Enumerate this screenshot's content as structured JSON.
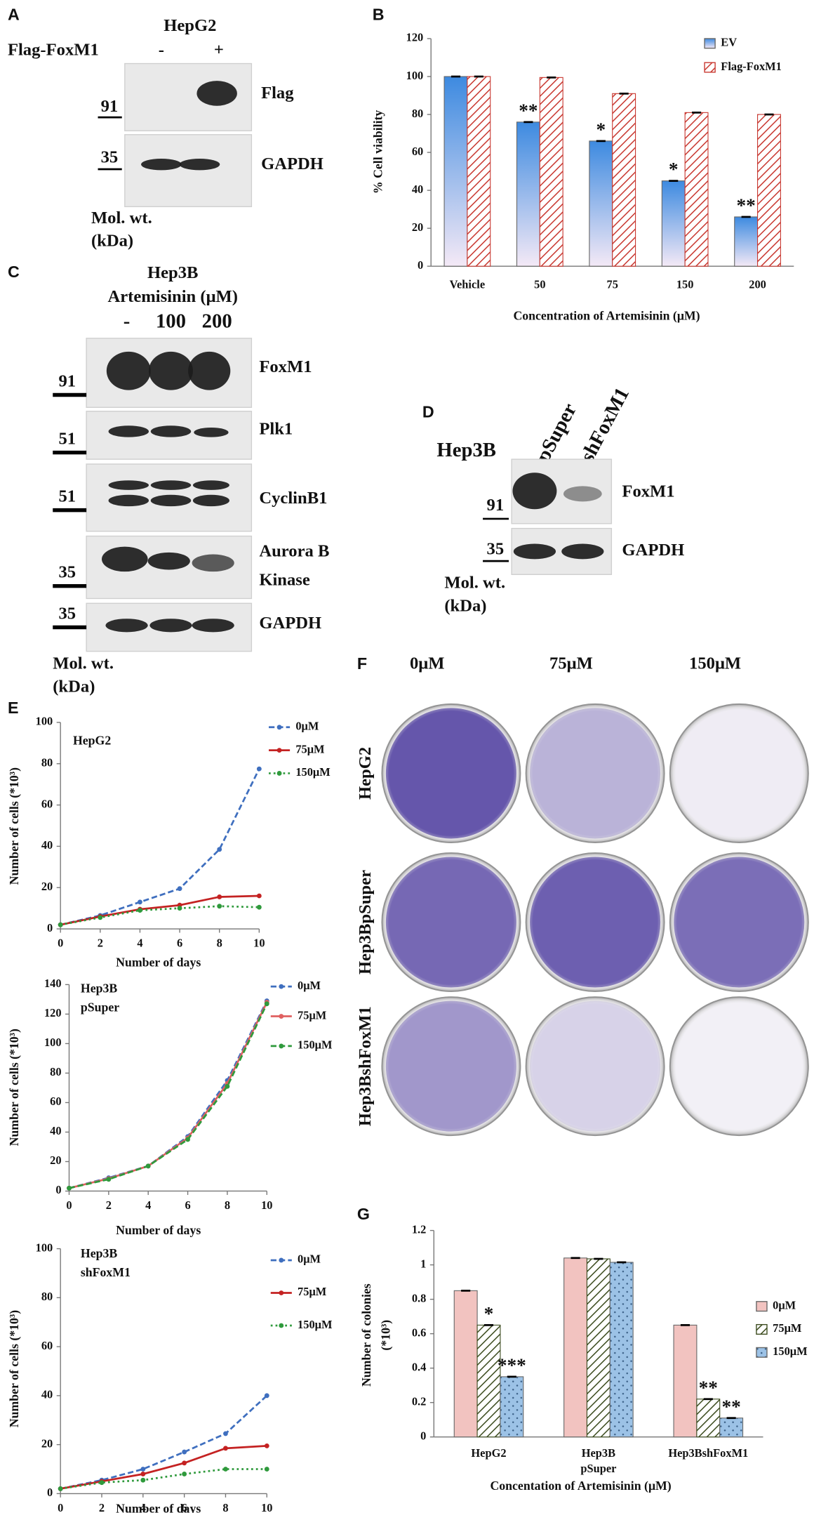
{
  "figure_panels": {
    "A": {
      "panel": "A",
      "cell_line": "HepG2",
      "row_label": "Flag-FoxM1",
      "lanes": [
        "-",
        "+"
      ],
      "blots": [
        "Flag",
        "GAPDH"
      ],
      "markers": [
        91,
        35
      ],
      "mw_label": [
        "Mol. wt.",
        "(kDa)"
      ]
    },
    "C": {
      "panel": "C",
      "cell_line": "Hep3B",
      "row_label": "Artemisinin (μM)",
      "lanes": [
        "-",
        "100",
        "200"
      ],
      "blots": [
        "FoxM1",
        "Plk1",
        "CyclinB1",
        [
          "Aurora B",
          "Kinase"
        ],
        "GAPDH"
      ],
      "markers": [
        91,
        51,
        51,
        35,
        35
      ],
      "mw_label": [
        "Mol. wt.",
        "(kDa)"
      ]
    },
    "D": {
      "panel": "D",
      "cell_line": "Hep3B",
      "lanes": [
        "pSuper",
        "shFoxM1"
      ],
      "blots": [
        "FoxM1",
        "GAPDH"
      ],
      "markers": [
        91,
        35
      ],
      "mw_label": [
        "Mol. wt.",
        "(kDa)"
      ]
    },
    "F": {
      "panel": "F",
      "columns": [
        "0μM",
        "75μM",
        "150μM"
      ],
      "rows": [
        "HepG2",
        "Hep3BpSuper",
        "Hep3BshFoxM1"
      ]
    }
  },
  "chart_data": [
    {
      "type": "bar",
      "panel": "B",
      "categories": [
        "Vehicle",
        "50",
        "75",
        "150",
        "200"
      ],
      "series": [
        {
          "name": "EV",
          "color": "#3d8ae0",
          "pattern": "gradient",
          "values": [
            100,
            76,
            66,
            45,
            26
          ],
          "annotations": [
            null,
            "**",
            "*",
            "*",
            "**"
          ]
        },
        {
          "name": "Flag-FoxM1",
          "color": "#c8362e",
          "pattern": "hatch",
          "values": [
            100,
            99.5,
            91,
            81,
            80
          ]
        }
      ],
      "ylim": [
        0,
        120
      ],
      "yticks": [
        0,
        20,
        40,
        60,
        80,
        100,
        120
      ],
      "ylabel": "% Cell viability",
      "xlabel": "Concentration of Artemisinin (μM)",
      "legend": "upper right"
    },
    {
      "type": "line",
      "panel": "E",
      "title": [
        "HepG2"
      ],
      "x": [
        0,
        2,
        4,
        6,
        8,
        10
      ],
      "series": [
        {
          "name": "0μM",
          "color": "#3f6fbf",
          "dash": "dashed",
          "values": [
            2,
            6.5,
            13,
            19.5,
            38.5,
            77.5
          ]
        },
        {
          "name": "75μM",
          "color": "#c42222",
          "dash": "solid",
          "values": [
            2,
            6,
            9.5,
            11.5,
            15.5,
            16
          ]
        },
        {
          "name": "150μM",
          "color": "#2f9a3c",
          "dash": "dotted",
          "values": [
            2,
            5.5,
            9,
            10,
            11,
            10.5
          ]
        }
      ],
      "xlim": [
        0,
        10
      ],
      "xticks": [
        0,
        2,
        4,
        6,
        8,
        10
      ],
      "ylim": [
        0,
        100
      ],
      "yticks": [
        0,
        20,
        40,
        60,
        80,
        100
      ],
      "ylabel": "Number of cells (*10³)",
      "xlabel": "Number of days",
      "legend": "upper right"
    },
    {
      "type": "line",
      "title": [
        "Hep3B",
        "pSuper"
      ],
      "x": [
        0,
        2,
        4,
        6,
        8,
        10
      ],
      "series": [
        {
          "name": "0μM",
          "color": "#3f6fbf",
          "dash": "dashed",
          "values": [
            2,
            9,
            17,
            37,
            75,
            129
          ]
        },
        {
          "name": "75μM",
          "color": "#e06060",
          "dash": "solid",
          "values": [
            2,
            8.5,
            17,
            36,
            73,
            128
          ]
        },
        {
          "name": "150μM",
          "color": "#2f9a3c",
          "dash": "dashed",
          "values": [
            2,
            8,
            17,
            35,
            71,
            127
          ]
        }
      ],
      "xlim": [
        0,
        10
      ],
      "xticks": [
        0,
        2,
        4,
        6,
        8,
        10
      ],
      "ylim": [
        0,
        140
      ],
      "yticks": [
        0,
        20,
        40,
        60,
        80,
        100,
        120,
        140
      ],
      "ylabel": "Number of cells (*10³)",
      "xlabel": "Number of days",
      "legend": "upper right"
    },
    {
      "type": "line",
      "title": [
        "Hep3B",
        "shFoxM1"
      ],
      "x": [
        0,
        2,
        4,
        6,
        8,
        10
      ],
      "series": [
        {
          "name": "0μM",
          "color": "#3f6fbf",
          "dash": "dashed",
          "values": [
            2,
            5.5,
            10,
            17,
            24.5,
            40
          ]
        },
        {
          "name": "75μM",
          "color": "#c42222",
          "dash": "solid",
          "values": [
            2,
            5,
            8,
            12.5,
            18.5,
            19.5
          ]
        },
        {
          "name": "150μM",
          "color": "#2f9a3c",
          "dash": "dotted",
          "values": [
            2,
            4.5,
            5.5,
            8,
            10,
            10
          ]
        }
      ],
      "xlim": [
        0,
        10
      ],
      "xticks": [
        0,
        2,
        4,
        6,
        8,
        10
      ],
      "ylim": [
        0,
        100
      ],
      "yticks": [
        0,
        20,
        40,
        60,
        80,
        100
      ],
      "ylabel": "Number of cells (*10³)",
      "xlabel": "Number of days",
      "legend": "upper right"
    },
    {
      "type": "bar",
      "panel": "G",
      "categories": [
        [
          "HepG2"
        ],
        [
          "Hep3B",
          "pSuper"
        ],
        [
          "Hep3BshFoxM1"
        ]
      ],
      "series": [
        {
          "name": "0μM",
          "color": "#f2c3c0",
          "pattern": "solid",
          "values": [
            0.85,
            1.04,
            0.65
          ]
        },
        {
          "name": "75μM",
          "color": "#3a4a1c",
          "pattern": "hatch",
          "values": [
            0.65,
            1.035,
            0.22
          ],
          "annotations": [
            "*",
            null,
            "**"
          ]
        },
        {
          "name": "150μM",
          "color": "#9cc2e6",
          "pattern": "dots",
          "values": [
            0.35,
            1.015,
            0.11
          ],
          "annotations": [
            "***",
            null,
            "**"
          ]
        }
      ],
      "ylim": [
        0,
        1.2
      ],
      "yticks": [
        0,
        0.2,
        0.4,
        0.6,
        0.8,
        1,
        1.2
      ],
      "ylabel": [
        "Number of colonies",
        "(*10³)"
      ],
      "xlabel": "Concentation of Artemisinin (μM)",
      "legend": "right"
    }
  ]
}
